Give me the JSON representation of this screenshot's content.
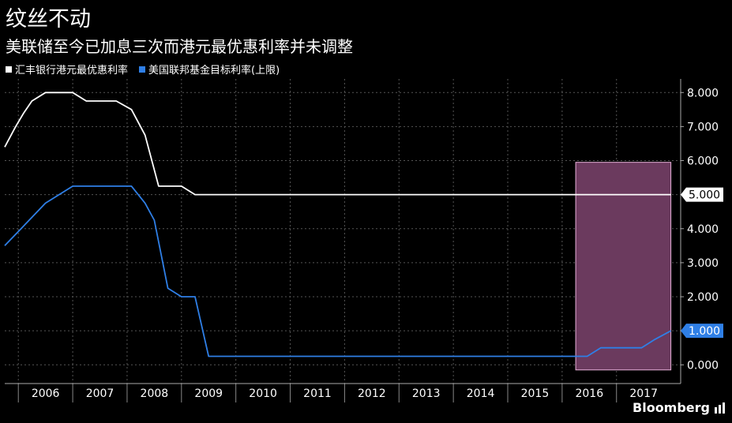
{
  "header": {
    "title": "纹丝不动",
    "subtitle": "美联储至今已加息三次而港元最优惠利率并未调整"
  },
  "brand": {
    "name": "Bloomberg"
  },
  "colors": {
    "background": "#000000",
    "hsbc": "#ffffff",
    "fed": "#2f7fe6",
    "highlight_fill": "#6b3a5e",
    "highlight_stroke": "#e6b0d8",
    "grid": "#555555"
  },
  "chart_data": {
    "type": "line",
    "title": "纹丝不动",
    "subtitle": "美联储至今已加息三次而港元最优惠利率并未调整",
    "xlabel": "",
    "ylabel": "",
    "x_ticks": [
      "2006",
      "2007",
      "2008",
      "2009",
      "2010",
      "2011",
      "2012",
      "2013",
      "2014",
      "2015",
      "2016",
      "2017"
    ],
    "xlim": [
      2005.25,
      2017.68
    ],
    "ylim": [
      -0.55,
      8.4
    ],
    "y_ticks": [
      "0.000",
      "1.000",
      "2.000",
      "3.000",
      "4.000",
      "5.000",
      "6.000",
      "7.000",
      "8.000"
    ],
    "grid": true,
    "legend_position": "top-left",
    "highlight_region": {
      "x": [
        2015.75,
        2017.5
      ],
      "y": [
        -0.15,
        5.95
      ]
    },
    "series": [
      {
        "name": "汇丰银行港元最优惠利率",
        "color": "#ffffff",
        "last_value_label": "5.000",
        "points": [
          [
            2005.25,
            6.4
          ],
          [
            2005.45,
            7.0
          ],
          [
            2005.6,
            7.4
          ],
          [
            2005.75,
            7.75
          ],
          [
            2006.0,
            8.0
          ],
          [
            2006.5,
            8.0
          ],
          [
            2006.75,
            7.75
          ],
          [
            2007.3,
            7.75
          ],
          [
            2007.58,
            7.5
          ],
          [
            2007.83,
            6.75
          ],
          [
            2008.08,
            5.25
          ],
          [
            2008.5,
            5.25
          ],
          [
            2008.75,
            5.0
          ],
          [
            2017.5,
            5.0
          ]
        ]
      },
      {
        "name": "美国联邦基金目标利率(上限)",
        "color": "#2f7fe6",
        "last_value_label": "1.000",
        "points": [
          [
            2005.25,
            3.5
          ],
          [
            2005.55,
            4.0
          ],
          [
            2006.0,
            4.75
          ],
          [
            2006.5,
            5.25
          ],
          [
            2007.58,
            5.25
          ],
          [
            2007.83,
            4.75
          ],
          [
            2008.0,
            4.25
          ],
          [
            2008.25,
            2.25
          ],
          [
            2008.5,
            2.0
          ],
          [
            2008.75,
            2.0
          ],
          [
            2009.0,
            0.25
          ],
          [
            2015.96,
            0.25
          ],
          [
            2016.21,
            0.5
          ],
          [
            2016.96,
            0.5
          ],
          [
            2017.21,
            0.75
          ],
          [
            2017.5,
            1.0
          ]
        ]
      }
    ]
  }
}
